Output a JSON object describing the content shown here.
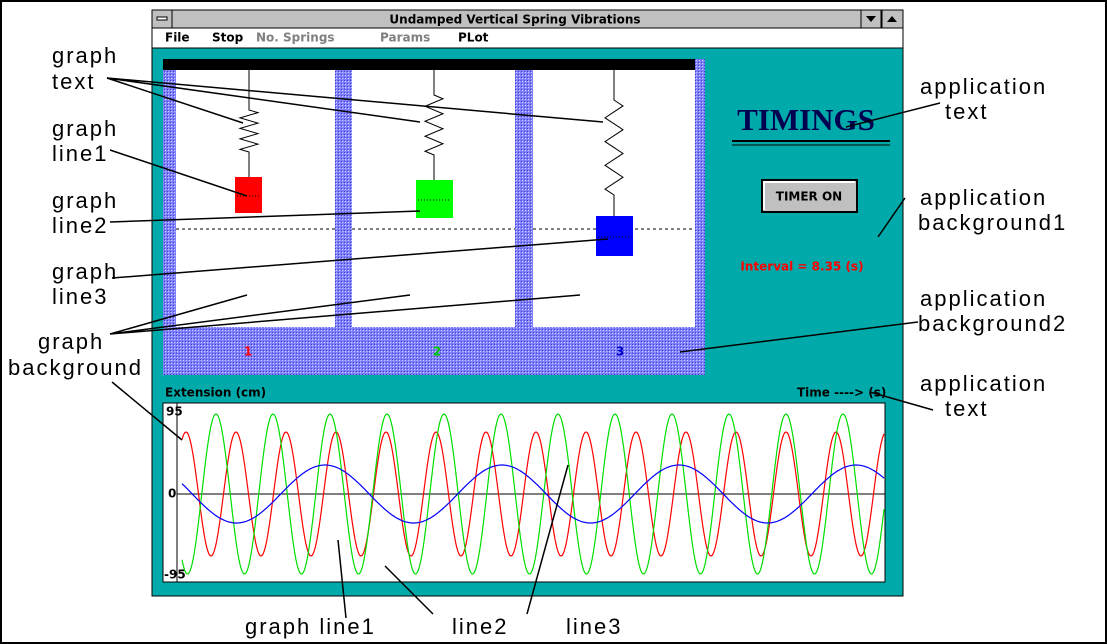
{
  "window": {
    "title": "Undamped Vertical Spring Vibrations",
    "menu": [
      "File",
      "Stop",
      "No. Springs",
      "Params",
      "PLot"
    ]
  },
  "springs_panel": {
    "labels": [
      "1",
      "2",
      "3"
    ]
  },
  "timings": {
    "heading": "TIMINGS",
    "button": "TIMER ON",
    "interval": "Interval = 8.35 (s)"
  },
  "graph": {
    "y_label": "Extension (cm)",
    "x_label": "Time ----> (s)",
    "y_ticks": [
      "95",
      "0",
      "-95"
    ]
  },
  "annotations": [
    {
      "lines": [
        "graph",
        "text"
      ]
    },
    {
      "lines": [
        "graph",
        "line1"
      ]
    },
    {
      "lines": [
        "graph",
        "line2"
      ]
    },
    {
      "lines": [
        "graph",
        "line3"
      ]
    },
    {
      "lines": [
        "graph",
        "background"
      ]
    },
    {
      "lines": [
        "application",
        "text"
      ]
    },
    {
      "lines": [
        "application",
        "background1"
      ]
    },
    {
      "lines": [
        "application",
        "background2"
      ]
    },
    {
      "lines": [
        "application",
        "text"
      ]
    },
    {
      "lines": [
        "graph line1"
      ]
    },
    {
      "lines": [
        "line2"
      ]
    },
    {
      "lines": [
        "line3"
      ]
    }
  ]
}
